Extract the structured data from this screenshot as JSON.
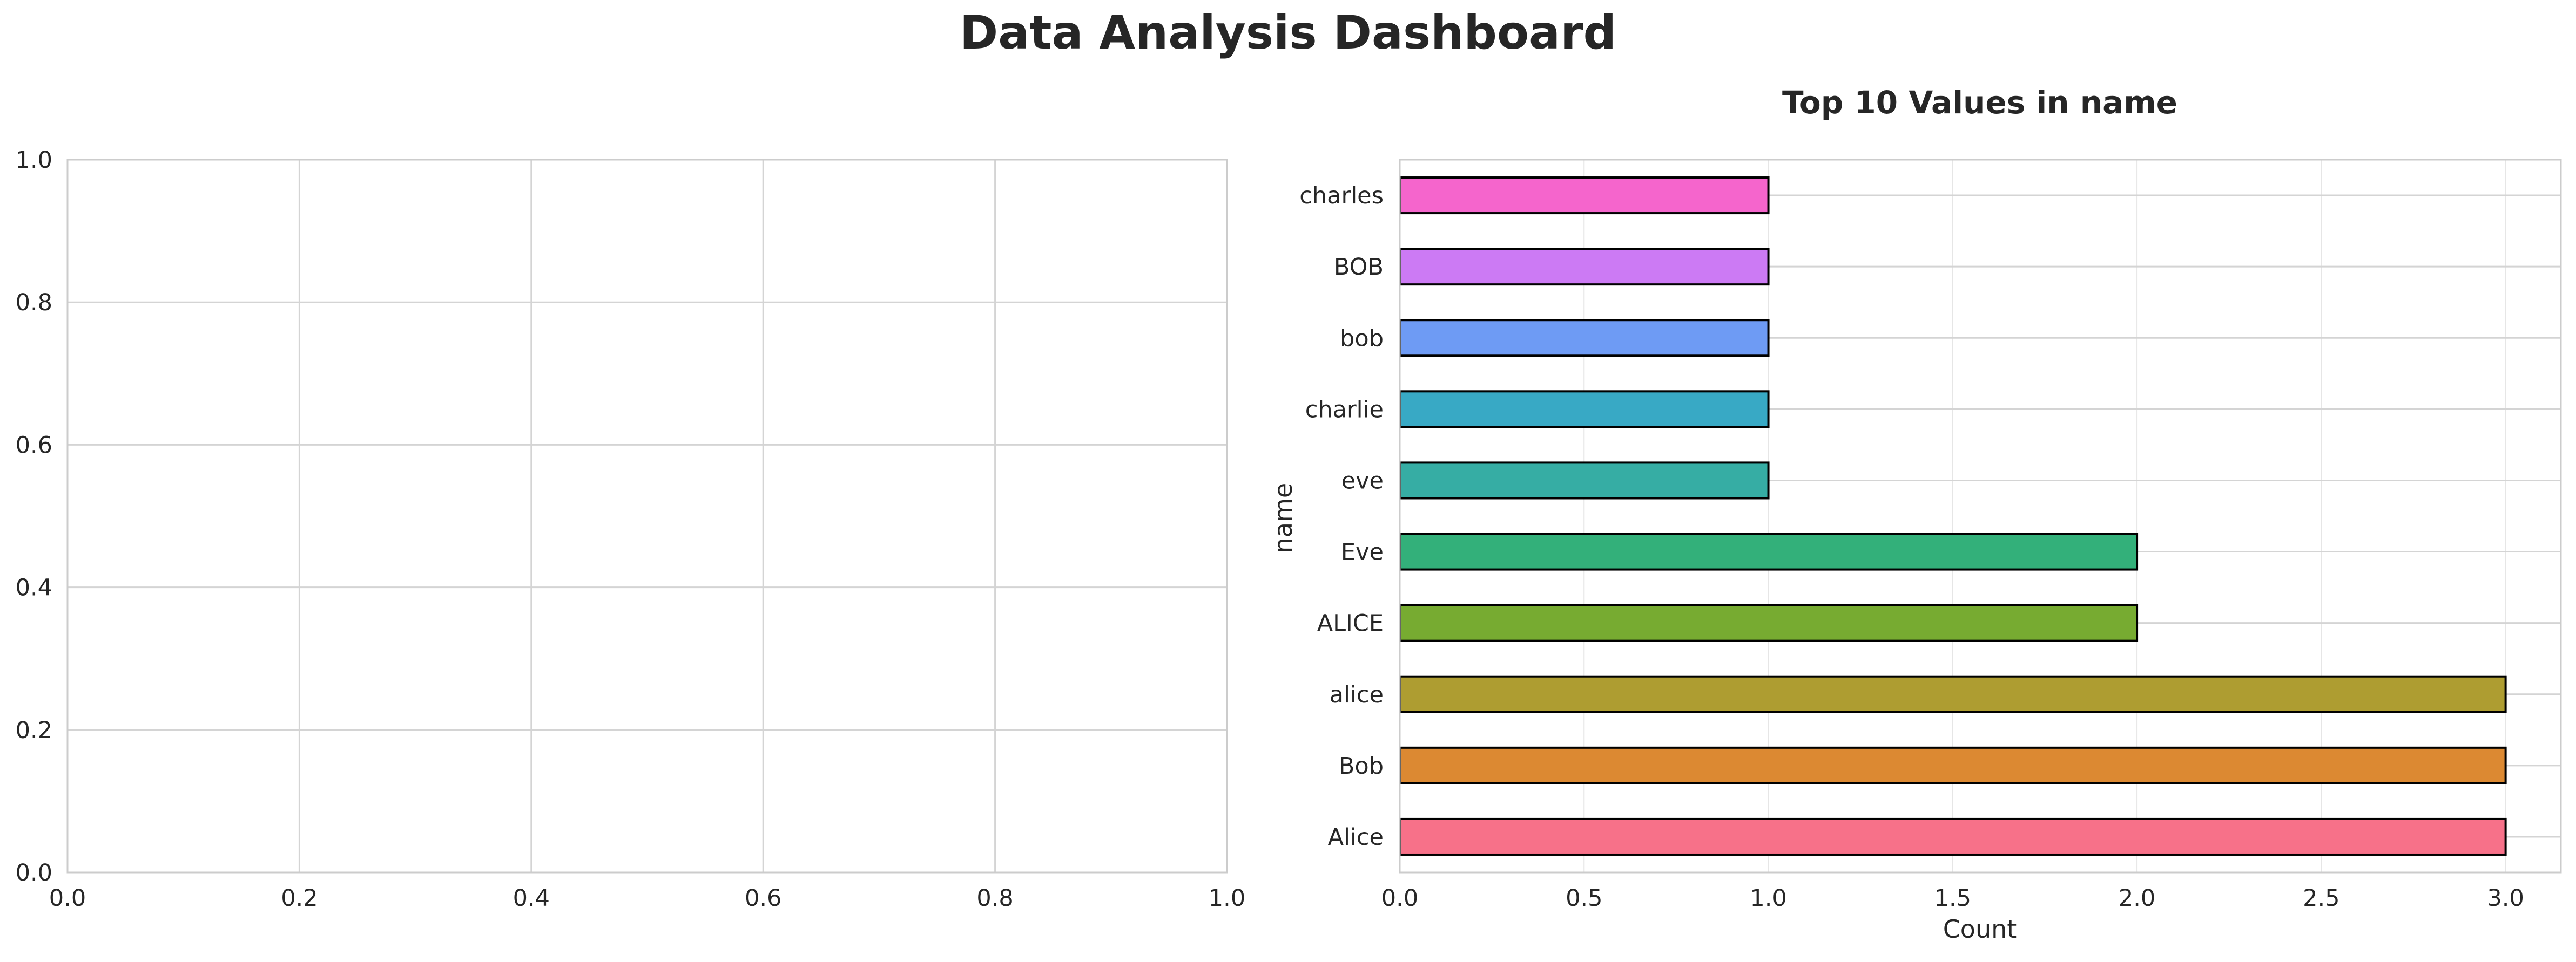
{
  "figure": {
    "title": "Data Analysis Dashboard"
  },
  "chart_data": [
    {
      "type": "empty",
      "title": "",
      "xlabel": "",
      "ylabel": "",
      "xlim": [
        0,
        1
      ],
      "ylim": [
        0,
        1
      ],
      "xticks": [
        "0.0",
        "0.2",
        "0.4",
        "0.6",
        "0.8",
        "1.0"
      ],
      "yticks": [
        "0.0",
        "0.2",
        "0.4",
        "0.6",
        "0.8",
        "1.0"
      ],
      "grid": true
    },
    {
      "type": "bar",
      "orientation": "horizontal",
      "title": "Top 10 Values in name",
      "xlabel": "Count",
      "ylabel": "name",
      "xlim": [
        0,
        3.15
      ],
      "xticks": [
        "0.0",
        "0.5",
        "1.0",
        "1.5",
        "2.0",
        "2.5",
        "3.0"
      ],
      "grid": true,
      "categories": [
        "Alice",
        "Bob",
        "alice",
        "ALICE",
        "Eve",
        "eve",
        "charlie",
        "bob",
        "BOB",
        "charles"
      ],
      "values": [
        3,
        3,
        3,
        2,
        2,
        1,
        1,
        1,
        1,
        1
      ],
      "colors": [
        "#f77189",
        "#dc8932",
        "#ae9d31",
        "#77ab31",
        "#33b07a",
        "#36ada4",
        "#38a9c5",
        "#6e9bf4",
        "#cc7af4",
        "#f565cc"
      ]
    }
  ]
}
